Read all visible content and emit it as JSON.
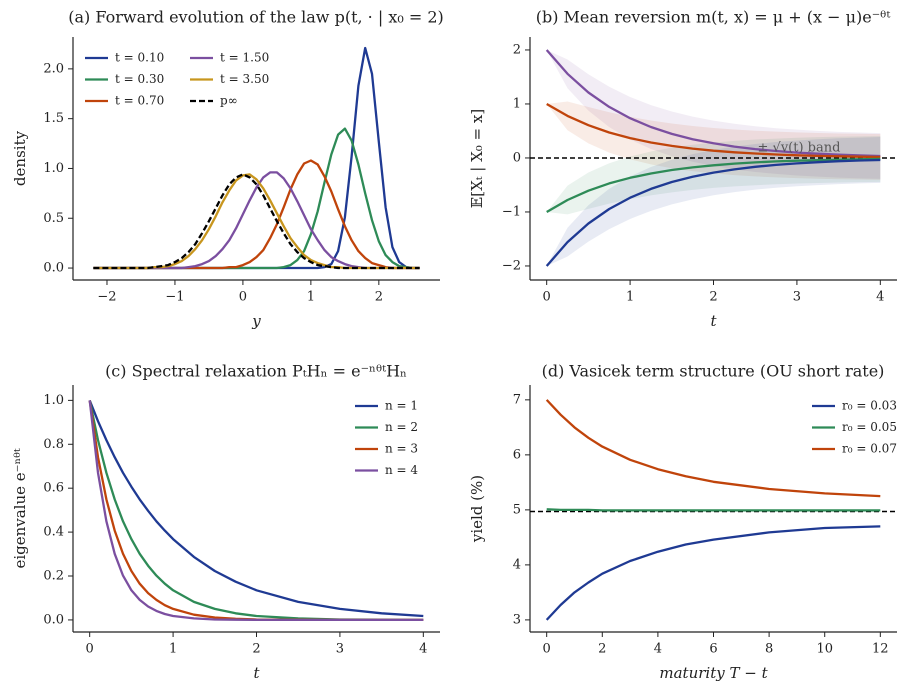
{
  "chart_data": [
    {
      "type": "line",
      "title": "(a) Forward evolution of the law p(t, · | x₀ = 2)",
      "xlabel": "y",
      "ylabel": "density",
      "x": [
        -2.2,
        -2.1,
        -2.0,
        -1.9,
        -1.8,
        -1.7,
        -1.6,
        -1.5,
        -1.4,
        -1.3,
        -1.2,
        -1.1,
        -1.0,
        -0.9,
        -0.8,
        -0.7,
        -0.6,
        -0.5,
        -0.4,
        -0.3,
        -0.2,
        -0.1,
        0,
        0.1,
        0.2,
        0.3,
        0.4,
        0.5,
        0.6,
        0.7,
        0.8,
        0.9,
        1.0,
        1.1,
        1.2,
        1.3,
        1.4,
        1.5,
        1.6,
        1.7,
        1.8,
        1.9,
        2.0,
        2.1,
        2.2,
        2.3,
        2.4,
        2.5,
        2.6
      ],
      "series": [
        {
          "name": "t = 0.10",
          "color": "#1f3a93",
          "values": [
            0,
            0,
            0,
            0,
            0,
            0,
            0,
            0,
            0,
            0,
            0,
            0,
            0,
            0,
            0,
            0,
            0,
            0,
            0,
            0,
            0,
            0,
            0,
            0,
            0,
            0,
            0,
            0,
            0,
            0,
            0,
            0,
            0,
            0,
            0.01,
            0.04,
            0.17,
            0.51,
            1.12,
            1.83,
            2.21,
            1.95,
            1.27,
            0.61,
            0.21,
            0.06,
            0.01,
            0,
            0
          ]
        },
        {
          "name": "t = 0.30",
          "color": "#2e8b57",
          "values": [
            0,
            0,
            0,
            0,
            0,
            0,
            0,
            0,
            0,
            0,
            0,
            0,
            0,
            0,
            0,
            0,
            0,
            0,
            0,
            0,
            0,
            0,
            0,
            0,
            0,
            0,
            0,
            0,
            0.01,
            0.03,
            0.08,
            0.17,
            0.34,
            0.57,
            0.86,
            1.14,
            1.34,
            1.4,
            1.28,
            1.04,
            0.75,
            0.48,
            0.27,
            0.13,
            0.06,
            0.02,
            0.01,
            0,
            0
          ]
        },
        {
          "name": "t = 0.70",
          "color": "#c0440b",
          "values": [
            0,
            0,
            0,
            0,
            0,
            0,
            0,
            0,
            0,
            0,
            0,
            0,
            0,
            0,
            0,
            0,
            0,
            0,
            0,
            0,
            0.01,
            0.01,
            0.03,
            0.06,
            0.11,
            0.18,
            0.3,
            0.44,
            0.61,
            0.79,
            0.94,
            1.05,
            1.08,
            1.04,
            0.92,
            0.77,
            0.59,
            0.42,
            0.28,
            0.17,
            0.1,
            0.05,
            0.03,
            0.01,
            0,
            0,
            0,
            0,
            0
          ]
        },
        {
          "name": "t = 1.50",
          "color": "#7b4fa0",
          "values": [
            0,
            0,
            0,
            0,
            0,
            0,
            0,
            0,
            0,
            0,
            0,
            0,
            0,
            0,
            0.01,
            0.02,
            0.04,
            0.07,
            0.12,
            0.19,
            0.28,
            0.4,
            0.54,
            0.68,
            0.81,
            0.91,
            0.96,
            0.96,
            0.9,
            0.8,
            0.67,
            0.53,
            0.39,
            0.28,
            0.18,
            0.11,
            0.07,
            0.04,
            0.02,
            0.01,
            0,
            0,
            0,
            0,
            0,
            0,
            0,
            0,
            0
          ]
        },
        {
          "name": "t = 3.50",
          "color": "#c8961e",
          "values": [
            0,
            0,
            0,
            0,
            0,
            0,
            0,
            0,
            0,
            0.01,
            0.01,
            0.02,
            0.04,
            0.07,
            0.12,
            0.19,
            0.28,
            0.39,
            0.52,
            0.66,
            0.78,
            0.88,
            0.93,
            0.94,
            0.89,
            0.8,
            0.68,
            0.55,
            0.42,
            0.3,
            0.21,
            0.13,
            0.08,
            0.05,
            0.03,
            0.01,
            0.01,
            0,
            0,
            0,
            0,
            0,
            0,
            0,
            0,
            0,
            0,
            0,
            0
          ]
        },
        {
          "name": "p∞",
          "color": "#000000",
          "dashed": true,
          "values": [
            0,
            0,
            0,
            0,
            0,
            0,
            0,
            0,
            0,
            0.01,
            0.02,
            0.03,
            0.06,
            0.1,
            0.16,
            0.24,
            0.35,
            0.47,
            0.6,
            0.73,
            0.84,
            0.91,
            0.94,
            0.91,
            0.84,
            0.73,
            0.6,
            0.47,
            0.35,
            0.24,
            0.16,
            0.1,
            0.06,
            0.03,
            0.02,
            0.01,
            0,
            0,
            0,
            0,
            0,
            0,
            0,
            0,
            0,
            0,
            0,
            0,
            0
          ]
        }
      ],
      "xlim": [
        -2.5,
        2.9
      ],
      "ylim": [
        -0.12,
        2.32
      ],
      "xticks": [
        {
          "value": -2,
          "label": "−2"
        },
        {
          "value": -1,
          "label": "−1"
        },
        0,
        1,
        2
      ],
      "yticks": [
        {
          "value": 0,
          "label": "0.0"
        },
        {
          "value": 0.5,
          "label": "0.5"
        },
        {
          "value": 1,
          "label": "1.0"
        },
        {
          "value": 1.5,
          "label": "1.5"
        },
        {
          "value": 2,
          "label": "2.0"
        }
      ],
      "legend": "upper left",
      "legend_columns": 2
    },
    {
      "type": "line",
      "title": "(b) Mean reversion m(t, x) = μ + (x − μ)e⁻ᶿᵗ",
      "xlabel": "t",
      "ylabel": "𝔼[Xₜ | X₀ = x]",
      "x": [
        0,
        0.25,
        0.5,
        0.75,
        1,
        1.25,
        1.5,
        1.75,
        2,
        2.25,
        2.5,
        2.75,
        3,
        3.25,
        3.5,
        3.75,
        4
      ],
      "series": [
        {
          "color": "#7b4fa0",
          "values": [
            2,
            1.558,
            1.213,
            0.945,
            0.736,
            0.573,
            0.446,
            0.348,
            0.271,
            0.211,
            0.164,
            0.128,
            0.1,
            0.078,
            0.06,
            0.047,
            0.037
          ]
        },
        {
          "color": "#c0440b",
          "values": [
            1,
            0.779,
            0.607,
            0.472,
            0.368,
            0.287,
            0.223,
            0.174,
            0.135,
            0.105,
            0.082,
            0.064,
            0.05,
            0.039,
            0.03,
            0.024,
            0.018
          ]
        },
        {
          "color": "#2e8b57",
          "values": [
            -1,
            -0.779,
            -0.607,
            -0.472,
            -0.368,
            -0.287,
            -0.223,
            -0.174,
            -0.135,
            -0.105,
            -0.082,
            -0.064,
            -0.05,
            -0.039,
            -0.03,
            -0.024,
            -0.018
          ]
        },
        {
          "color": "#1f3a93",
          "values": [
            -2,
            -1.558,
            -1.213,
            -0.945,
            -0.736,
            -0.573,
            -0.446,
            -0.348,
            -0.271,
            -0.211,
            -0.164,
            -0.128,
            -0.1,
            -0.078,
            -0.06,
            -0.047,
            -0.037
          ]
        }
      ],
      "band": {
        "label": "± √v(t) band",
        "values": [
          0,
          0.266,
          0.337,
          0.374,
          0.394,
          0.406,
          0.414,
          0.418,
          0.42,
          0.422,
          0.423,
          0.423,
          0.424,
          0.424,
          0.424,
          0.424,
          0.424
        ]
      },
      "hline": 0,
      "xlim": [
        -0.2,
        4.2
      ],
      "ylim": [
        -2.26,
        2.24
      ],
      "xticks": [
        0,
        1,
        2,
        3,
        4
      ],
      "yticks": [
        {
          "value": -2,
          "label": "−2"
        },
        {
          "value": -1,
          "label": "−1"
        },
        0,
        1,
        2
      ]
    },
    {
      "type": "line",
      "title": "(c) Spectral relaxation PₜHₙ = e⁻ⁿᶿᵗHₙ",
      "xlabel": "t",
      "ylabel": "eigenvalue e⁻ⁿᶿᵗ",
      "x": [
        0,
        0.1,
        0.2,
        0.3,
        0.4,
        0.5,
        0.6,
        0.7,
        0.8,
        0.9,
        1,
        1.25,
        1.5,
        1.75,
        2,
        2.5,
        3,
        3.5,
        4
      ],
      "series": [
        {
          "name": "n = 1",
          "color": "#1f3a93",
          "values": [
            1,
            0.905,
            0.819,
            0.741,
            0.67,
            0.607,
            0.549,
            0.497,
            0.449,
            0.407,
            0.368,
            0.287,
            0.223,
            0.174,
            0.135,
            0.082,
            0.05,
            0.03,
            0.018
          ]
        },
        {
          "name": "n = 2",
          "color": "#2e8b57",
          "values": [
            1,
            0.819,
            0.67,
            0.549,
            0.449,
            0.368,
            0.301,
            0.247,
            0.202,
            0.165,
            0.135,
            0.082,
            0.05,
            0.03,
            0.018,
            0.007,
            0.002,
            0.001,
            0
          ]
        },
        {
          "name": "n = 3",
          "color": "#c0440b",
          "values": [
            1,
            0.741,
            0.549,
            0.407,
            0.301,
            0.223,
            0.165,
            0.122,
            0.091,
            0.067,
            0.05,
            0.024,
            0.011,
            0.005,
            0.002,
            0.001,
            0,
            0,
            0
          ]
        },
        {
          "name": "n = 4",
          "color": "#7b4fa0",
          "values": [
            1,
            0.67,
            0.449,
            0.301,
            0.202,
            0.135,
            0.091,
            0.061,
            0.041,
            0.027,
            0.018,
            0.007,
            0.002,
            0.001,
            0,
            0,
            0,
            0,
            0
          ]
        }
      ],
      "xlim": [
        -0.2,
        4.2
      ],
      "ylim": [
        -0.055,
        1.07
      ],
      "xticks": [
        0,
        1,
        2,
        3,
        4
      ],
      "yticks": [
        {
          "value": 0,
          "label": "0.0"
        },
        {
          "value": 0.2,
          "label": "0.2"
        },
        {
          "value": 0.4,
          "label": "0.4"
        },
        {
          "value": 0.6,
          "label": "0.6"
        },
        {
          "value": 0.8,
          "label": "0.8"
        },
        {
          "value": 1,
          "label": "1.0"
        }
      ],
      "legend": "upper right",
      "legend_columns": 1
    },
    {
      "type": "line",
      "title": "(d) Vasicek term structure (OU short rate)",
      "xlabel": "maturity T − t",
      "ylabel": "yield (%)",
      "x": [
        0,
        0.5,
        1,
        1.5,
        2,
        3,
        4,
        5,
        6,
        8,
        10,
        12
      ],
      "series": [
        {
          "name": "r₀ = 0.03",
          "color": "#1f3a93",
          "values": [
            3,
            3.27,
            3.5,
            3.68,
            3.84,
            4.07,
            4.24,
            4.37,
            4.46,
            4.59,
            4.67,
            4.7
          ]
        },
        {
          "name": "r₀ = 0.05",
          "color": "#2e8b57",
          "values": [
            5.01,
            5.0,
            5.0,
            5.0,
            4.99,
            4.99,
            4.99,
            4.99,
            4.99,
            4.99,
            4.99,
            4.99
          ]
        },
        {
          "name": "r₀ = 0.07",
          "color": "#c0440b",
          "values": [
            7,
            6.73,
            6.5,
            6.31,
            6.15,
            5.91,
            5.74,
            5.61,
            5.51,
            5.38,
            5.3,
            5.25
          ]
        }
      ],
      "hline": 4.97,
      "xlim": [
        -0.6,
        12.6
      ],
      "ylim": [
        2.78,
        7.27
      ],
      "xticks": [
        0,
        2,
        4,
        6,
        8,
        10,
        12
      ],
      "yticks": [
        3,
        4,
        5,
        6,
        7
      ],
      "legend": "upper right",
      "legend_columns": 1
    }
  ]
}
